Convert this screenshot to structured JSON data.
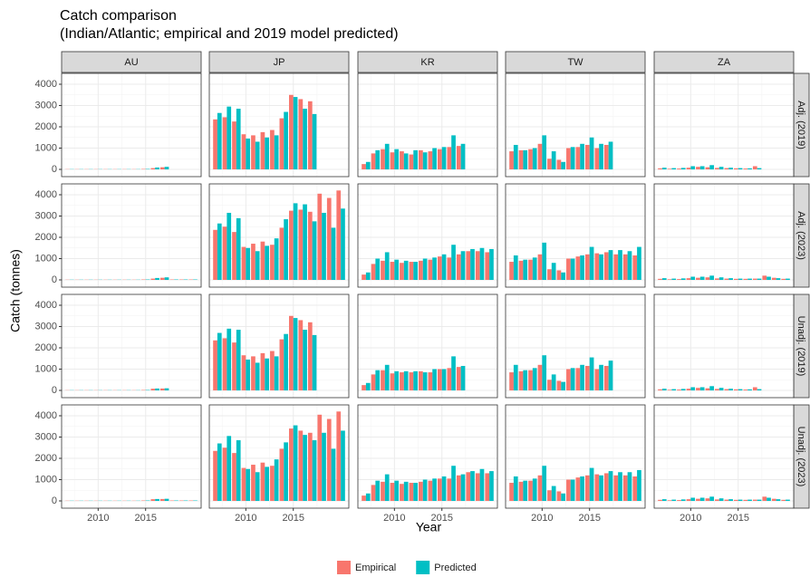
{
  "chart_data": {
    "type": "bar",
    "title": "Catch comparison",
    "subtitle": "(Indian/Atlantic; empirical and 2019 model predicted)",
    "xlabel": "Year",
    "ylabel": "Catch (tonnes)",
    "x": [
      2007,
      2008,
      2009,
      2010,
      2011,
      2012,
      2013,
      2014,
      2015,
      2016,
      2017,
      2018,
      2019,
      2020
    ],
    "xlim": [
      2006.15,
      2020.85
    ],
    "xticks": [
      2010,
      2015
    ],
    "ylim": [
      -340,
      4510
    ],
    "yticks": [
      0,
      1000,
      2000,
      3000,
      4000
    ],
    "grid": true,
    "legend": "bottom",
    "series": [
      {
        "name": "Empirical",
        "color": "#F8766D"
      },
      {
        "name": "Predicted",
        "color": "#00BFC4"
      }
    ],
    "columns": [
      "AU",
      "JP",
      "KR",
      "TW",
      "ZA"
    ],
    "rows": [
      {
        "label": "Adj. (2019)",
        "values": [
          [
            [
              10,
              10,
              10,
              10,
              10,
              10,
              10,
              10,
              20,
              60,
              100,
              null,
              null,
              null
            ],
            [
              10,
              10,
              10,
              10,
              10,
              10,
              10,
              10,
              20,
              90,
              120,
              null,
              null,
              null
            ]
          ],
          [
            [
              2350,
              2450,
              2250,
              1650,
              1600,
              1750,
              1850,
              2400,
              3500,
              3300,
              3200,
              null,
              null,
              null
            ],
            [
              2650,
              2950,
              2850,
              1450,
              1300,
              1500,
              1600,
              2700,
              3400,
              2850,
              2600,
              null,
              null,
              null
            ]
          ],
          [
            [
              250,
              750,
              950,
              800,
              850,
              700,
              900,
              850,
              950,
              1050,
              1100,
              null,
              null,
              null
            ],
            [
              350,
              900,
              1200,
              950,
              750,
              900,
              800,
              1000,
              1050,
              1600,
              1200,
              null,
              null,
              null
            ]
          ],
          [
            [
              850,
              900,
              950,
              1200,
              500,
              450,
              1000,
              1050,
              1150,
              1000,
              1150,
              null,
              null,
              null
            ],
            [
              1150,
              900,
              1000,
              1600,
              850,
              350,
              1050,
              1200,
              1500,
              1200,
              1300,
              null,
              null,
              null
            ]
          ],
          [
            [
              50,
              30,
              40,
              80,
              120,
              100,
              70,
              60,
              50,
              40,
              150,
              null,
              null,
              null
            ],
            [
              80,
              60,
              70,
              150,
              150,
              200,
              120,
              80,
              60,
              50,
              60,
              null,
              null,
              null
            ]
          ]
        ]
      },
      {
        "label": "Adj. (2023)",
        "values": [
          [
            [
              10,
              10,
              10,
              10,
              10,
              10,
              10,
              10,
              20,
              60,
              100,
              20,
              20,
              20
            ],
            [
              10,
              10,
              10,
              10,
              10,
              10,
              10,
              10,
              20,
              90,
              120,
              20,
              20,
              20
            ]
          ],
          [
            [
              2350,
              2500,
              2250,
              1550,
              1700,
              1800,
              1650,
              2450,
              3250,
              3300,
              3200,
              4050,
              3850,
              4200
            ],
            [
              2650,
              3150,
              2900,
              1500,
              1350,
              1600,
              1950,
              2850,
              3600,
              3550,
              2750,
              3150,
              2450,
              3350
            ]
          ],
          [
            [
              250,
              750,
              900,
              850,
              800,
              850,
              900,
              950,
              1100,
              1050,
              1200,
              1350,
              1350,
              1300
            ],
            [
              350,
              1000,
              1300,
              950,
              900,
              850,
              1000,
              1050,
              1200,
              1650,
              1350,
              1450,
              1500,
              1450
            ]
          ],
          [
            [
              850,
              900,
              950,
              1200,
              500,
              450,
              1000,
              1100,
              1200,
              1250,
              1300,
              1200,
              1200,
              1150
            ],
            [
              1150,
              950,
              1050,
              1750,
              800,
              350,
              1000,
              1150,
              1550,
              1200,
              1400,
              1400,
              1350,
              1550
            ]
          ],
          [
            [
              50,
              30,
              40,
              80,
              100,
              120,
              70,
              60,
              50,
              50,
              60,
              200,
              100,
              50
            ],
            [
              80,
              60,
              70,
              150,
              150,
              200,
              120,
              80,
              60,
              60,
              60,
              150,
              80,
              60
            ]
          ]
        ]
      },
      {
        "label": "Unadj. (2019)",
        "values": [
          [
            [
              10,
              10,
              10,
              10,
              10,
              10,
              10,
              10,
              20,
              80,
              90,
              null,
              null,
              null
            ],
            [
              10,
              10,
              10,
              10,
              10,
              10,
              10,
              10,
              20,
              90,
              100,
              null,
              null,
              null
            ]
          ],
          [
            [
              2350,
              2450,
              2250,
              1650,
              1600,
              1750,
              1850,
              2400,
              3500,
              3300,
              3200,
              null,
              null,
              null
            ],
            [
              2700,
              2900,
              2850,
              1450,
              1300,
              1500,
              1600,
              2650,
              3400,
              2850,
              2600,
              null,
              null,
              null
            ]
          ],
          [
            [
              250,
              750,
              950,
              800,
              850,
              850,
              900,
              850,
              1000,
              1050,
              1100,
              null,
              null,
              null
            ],
            [
              350,
              950,
              1200,
              900,
              900,
              900,
              850,
              1000,
              1000,
              1600,
              1150,
              null,
              null,
              null
            ]
          ],
          [
            [
              850,
              900,
              950,
              1200,
              500,
              450,
              1000,
              1050,
              1150,
              1000,
              1150,
              null,
              null,
              null
            ],
            [
              1200,
              950,
              1050,
              1650,
              750,
              400,
              1050,
              1200,
              1550,
              1200,
              1400,
              null,
              null,
              null
            ]
          ],
          [
            [
              50,
              30,
              40,
              80,
              120,
              100,
              70,
              60,
              50,
              40,
              150,
              null,
              null,
              null
            ],
            [
              80,
              60,
              70,
              150,
              150,
              200,
              120,
              80,
              60,
              50,
              60,
              null,
              null,
              null
            ]
          ]
        ]
      },
      {
        "label": "Unadj. (2023)",
        "values": [
          [
            [
              10,
              10,
              10,
              10,
              10,
              10,
              10,
              10,
              20,
              80,
              90,
              20,
              20,
              20
            ],
            [
              10,
              10,
              10,
              10,
              10,
              10,
              10,
              10,
              20,
              90,
              100,
              20,
              20,
              20
            ]
          ],
          [
            [
              2350,
              2500,
              2250,
              1550,
              1700,
              1800,
              1650,
              2450,
              3400,
              3300,
              3200,
              4050,
              3850,
              4200
            ],
            [
              2700,
              3050,
              2850,
              1500,
              1350,
              1600,
              1950,
              2750,
              3550,
              3100,
              2850,
              3200,
              2450,
              3300
            ]
          ],
          [
            [
              250,
              750,
              900,
              850,
              800,
              850,
              900,
              950,
              1050,
              1050,
              1200,
              1350,
              1300,
              1300
            ],
            [
              350,
              950,
              1250,
              950,
              900,
              850,
              1000,
              1050,
              1150,
              1650,
              1250,
              1400,
              1500,
              1400
            ]
          ],
          [
            [
              850,
              900,
              950,
              1200,
              500,
              450,
              1000,
              1100,
              1200,
              1250,
              1300,
              1200,
              1200,
              1150
            ],
            [
              1150,
              950,
              1050,
              1650,
              700,
              350,
              1000,
              1150,
              1550,
              1200,
              1400,
              1350,
              1350,
              1450
            ]
          ],
          [
            [
              50,
              30,
              40,
              80,
              100,
              120,
              70,
              60,
              50,
              50,
              60,
              200,
              100,
              50
            ],
            [
              80,
              60,
              70,
              150,
              150,
              200,
              120,
              80,
              60,
              60,
              60,
              150,
              80,
              60
            ]
          ]
        ]
      }
    ]
  }
}
